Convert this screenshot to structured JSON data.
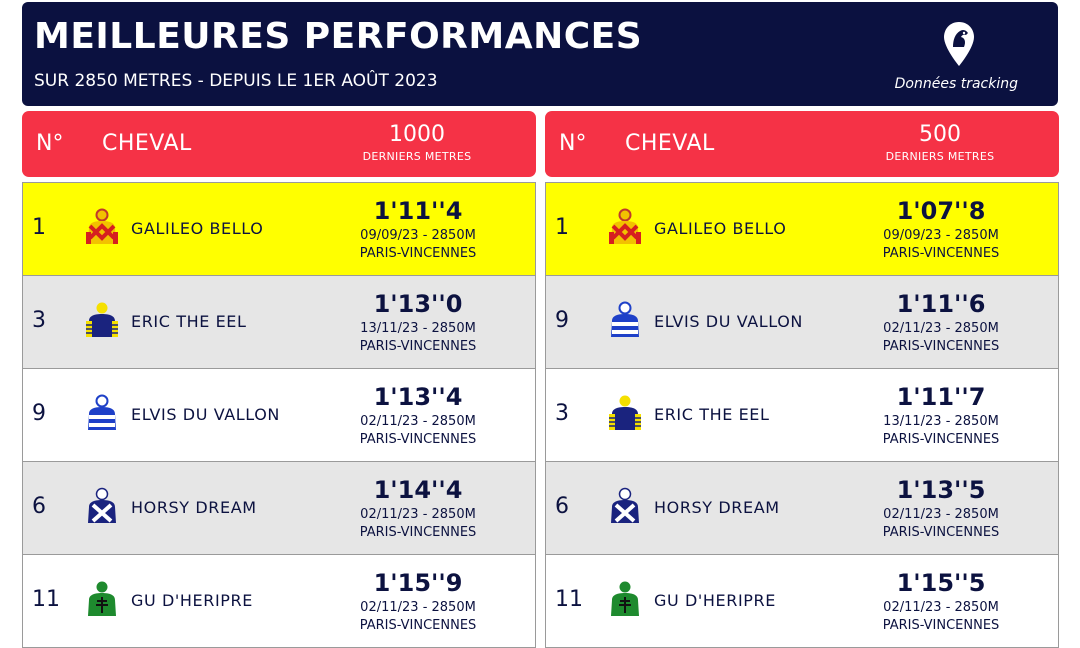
{
  "header": {
    "title": "MEILLEURES PERFORMANCES",
    "subtitle": "SUR 2850 METRES - DEPUIS LE 1ER AOÛT 2023",
    "tracking_label": "Données tracking",
    "tracking_icon": "horse-location-pin-icon"
  },
  "colors": {
    "navy": "#0b1140",
    "red": "#f53246",
    "highlight": "#ffff00",
    "row_grey": "#e6e6e6"
  },
  "panels": [
    {
      "col_no": "N°",
      "col_horse": "CHEVAL",
      "col_dist": "1000",
      "col_sub": "DERNIERS METRES",
      "rows": [
        {
          "num": "1",
          "name": "GALILEO BELLO",
          "time": "1'11''4",
          "date": "09/09/23 - 2850M",
          "track": "PARIS-VINCENNES",
          "silk": "red-yellow-diamond-silk-icon"
        },
        {
          "num": "3",
          "name": "ERIC THE EEL",
          "time": "1'13''0",
          "date": "13/11/23 - 2850M",
          "track": "PARIS-VINCENNES",
          "silk": "navy-yellow-check-silk-icon"
        },
        {
          "num": "9",
          "name": "ELVIS DU VALLON",
          "time": "1'13''4",
          "date": "02/11/23 - 2850M",
          "track": "PARIS-VINCENNES",
          "silk": "blue-white-hoops-silk-icon"
        },
        {
          "num": "6",
          "name": "HORSY DREAM",
          "time": "1'14''4",
          "date": "02/11/23 - 2850M",
          "track": "PARIS-VINCENNES",
          "silk": "navy-white-cross-silk-icon"
        },
        {
          "num": "11",
          "name": "GU D'HERIPRE",
          "time": "1'15''9",
          "date": "02/11/23 - 2850M",
          "track": "PARIS-VINCENNES",
          "silk": "green-lorraine-cross-silk-icon"
        }
      ]
    },
    {
      "col_no": "N°",
      "col_horse": "CHEVAL",
      "col_dist": "500",
      "col_sub": "DERNIERS METRES",
      "rows": [
        {
          "num": "1",
          "name": "GALILEO BELLO",
          "time": "1'07''8",
          "date": "09/09/23 - 2850M",
          "track": "PARIS-VINCENNES",
          "silk": "red-yellow-diamond-silk-icon"
        },
        {
          "num": "9",
          "name": "ELVIS DU VALLON",
          "time": "1'11''6",
          "date": "02/11/23 - 2850M",
          "track": "PARIS-VINCENNES",
          "silk": "blue-white-hoops-silk-icon"
        },
        {
          "num": "3",
          "name": "ERIC THE EEL",
          "time": "1'11''7",
          "date": "13/11/23 - 2850M",
          "track": "PARIS-VINCENNES",
          "silk": "navy-yellow-check-silk-icon"
        },
        {
          "num": "6",
          "name": "HORSY DREAM",
          "time": "1'13''5",
          "date": "02/11/23 - 2850M",
          "track": "PARIS-VINCENNES",
          "silk": "navy-white-cross-silk-icon"
        },
        {
          "num": "11",
          "name": "GU D'HERIPRE",
          "time": "1'15''5",
          "date": "02/11/23 - 2850M",
          "track": "PARIS-VINCENNES",
          "silk": "green-lorraine-cross-silk-icon"
        }
      ]
    }
  ]
}
